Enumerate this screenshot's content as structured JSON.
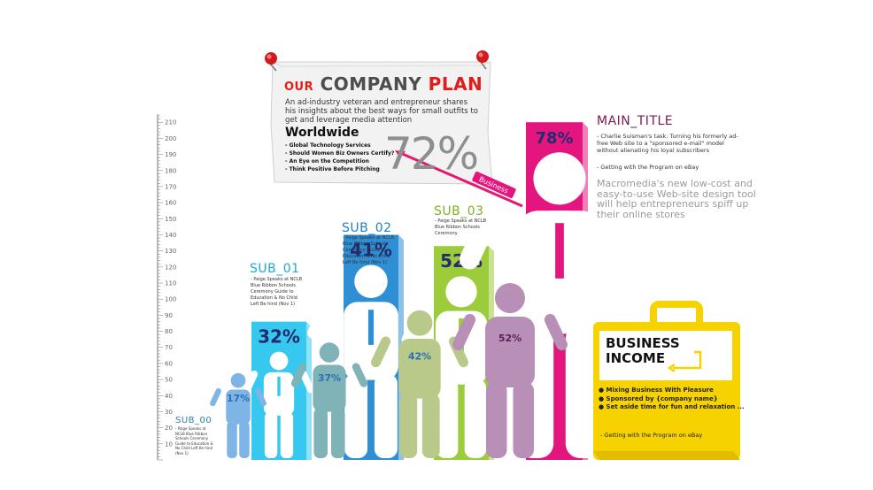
{
  "colors": {
    "bar_cyan": "#36c8ef",
    "bar_blue": "#2f8fd4",
    "bar_green": "#9ccb3b",
    "bar_magenta": "#e5157f",
    "person_light_blue": "#7fb5e6",
    "person_teal": "#7fb3b8",
    "person_olive": "#b9c98a",
    "person_mauve": "#b88fb6",
    "accent_red": "#e21b1b",
    "briefcase_yellow": "#f5d200"
  },
  "company_plan": {
    "title_part1": "OUR",
    "title_part2": "COMPANY",
    "title_part3": "PLAN",
    "description": "An ad-industry veteran and entrepreneur shares his insights about the best ways for small outfits to get and leverage media attention",
    "heading": "Worldwide",
    "items": [
      "- Global Technology Services",
      "- Should Women Biz Owners Certify?",
      "- An Eye on the Competition",
      "- Think Positive Before Pitching"
    ],
    "big_percent": "72%",
    "pointer_label": "Business"
  },
  "main": {
    "title": "MAIN_TITLE",
    "desc": "- Charlie Suisman's task: Turning his formerly ad-free Web site to a \"sponsored e-mail\" model without alienating his loyal subscribers",
    "note": "- Getting with the Program on eBay",
    "promo": "Macromedia's new low-cost and easy-to-use Web-site design tool will help entrepreneurs spiff up their online stores"
  },
  "subs": [
    {
      "title": "SUB_00",
      "text": "- Paige Speaks at NCLB Blue Ribbon Schools Ceremony Guide to Education & No Child Left Be hind (Nov 1)"
    },
    {
      "title": "SUB_01",
      "text": "- Paige Speaks at NCLB Blue Ribbon Schools Ceremony Guide to Education & No Child Left Be hind (Nov 1)"
    },
    {
      "title": "SUB_02",
      "text": "- Paige Speaks at NCLB Blue Ribbon Schools Ceremony Guide to Education & No Child Left Be hind (Nov 1)"
    },
    {
      "title": "SUB_03",
      "text": "- Paige Speaks at NCLB Blue Ribbon Schools Ceremony"
    }
  ],
  "business_income": {
    "title_line1": "BUSINESS",
    "title_line2": "INCOME",
    "items": [
      "● Mixing Business With Pleasure",
      "● Sponsored by {company name}",
      "● Set aside time for fun and relaxation ..."
    ],
    "note": "- Getting with the Program on eBay"
  },
  "chart_data": {
    "type": "bar",
    "ylim": [
      0,
      215
    ],
    "y_ticks": [
      10,
      20,
      30,
      40,
      50,
      60,
      70,
      80,
      90,
      100,
      110,
      120,
      130,
      140,
      150,
      160,
      170,
      180,
      190,
      200,
      210
    ],
    "bars": [
      {
        "label": "32%",
        "value": 86,
        "color": "#36c8ef"
      },
      {
        "label": "41%",
        "value": 140,
        "color": "#2f8fd4"
      },
      {
        "label": "52%",
        "value": 133,
        "color": "#9ccb3b"
      },
      {
        "label": "78%",
        "value": 210,
        "color": "#e5157f"
      }
    ],
    "figures": [
      {
        "label": "17%",
        "value": 54,
        "color": "#7fb5e6"
      },
      {
        "label": "37%",
        "value": 73,
        "color": "#7fb3b8"
      },
      {
        "label": "42%",
        "value": 93,
        "color": "#b9c98a"
      },
      {
        "label": "52%",
        "value": 110,
        "color": "#b88fb6"
      }
    ]
  }
}
